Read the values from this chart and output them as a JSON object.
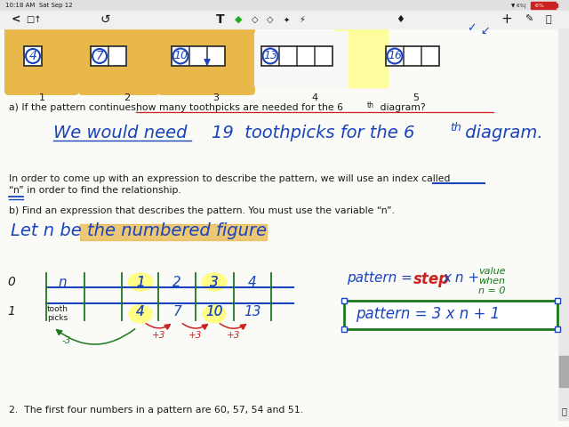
{
  "bg_color": "#fafaf6",
  "time_text": "10:18 AM  Sat Sep 12",
  "diagram_numbers": [
    "4",
    "7",
    "10",
    "13",
    "16"
  ],
  "diagram_labels": [
    "1",
    "2",
    "3",
    "4",
    "5"
  ],
  "orange_hl": "#e8b84b",
  "yellow_hl": "#ffff88",
  "blue": "#1a44bb",
  "green": "#1a7a1a",
  "red": "#cc2222",
  "dark": "#1a1a1a",
  "gray": "#888888",
  "question_a": "a) If the pattern continues, how many toothpicks are needed for the 6",
  "question_b": "b) Find an expression that describes the pattern. You must use the variable “n”.",
  "para1": "In order to come up with an expression to describe the pattern, we will use an index called",
  "para2": "“n” in order to find the relationship.",
  "q2": "2.  The first four numbers in a pattern are 60, 57, 54 and 51."
}
